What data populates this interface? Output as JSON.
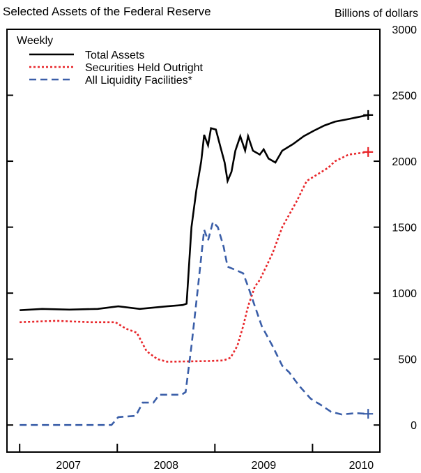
{
  "chart_data": {
    "type": "line",
    "title": "Selected Assets of the Federal Reserve",
    "y_axis_label": "Billions of dollars",
    "legend_title": "Weekly",
    "legend": "top-left",
    "xlim": [
      2006.87,
      2010.69
    ],
    "ylim": [
      -205,
      3000
    ],
    "yticks": [
      0,
      500,
      1000,
      1500,
      2000,
      2500,
      3000
    ],
    "x_boundaries": [
      2007,
      2008,
      2009,
      2010
    ],
    "xticks": [
      {
        "value": 2007.5,
        "label": "2007"
      },
      {
        "value": 2008.5,
        "label": "2008"
      },
      {
        "value": 2009.5,
        "label": "2009"
      },
      {
        "value": 2010.5,
        "label": "2010"
      }
    ],
    "series": [
      {
        "name": "Total Assets",
        "color": "#000000",
        "dash": "solid",
        "x": [
          2007.0,
          2007.23,
          2007.51,
          2007.8,
          2008.01,
          2008.23,
          2008.51,
          2008.67,
          2008.71,
          2008.76,
          2008.81,
          2008.86,
          2008.89,
          2008.93,
          2008.96,
          2009.01,
          2009.06,
          2009.1,
          2009.13,
          2009.17,
          2009.21,
          2009.26,
          2009.31,
          2009.34,
          2009.39,
          2009.46,
          2009.5,
          2009.55,
          2009.62,
          2009.69,
          2009.8,
          2009.91,
          2010.01,
          2010.12,
          2010.23,
          2010.37,
          2010.57
        ],
        "values": [
          870,
          880,
          875,
          880,
          900,
          880,
          900,
          910,
          920,
          1500,
          1780,
          2000,
          2200,
          2120,
          2250,
          2240,
          2100,
          1990,
          1850,
          1920,
          2080,
          2190,
          2080,
          2190,
          2080,
          2050,
          2090,
          2020,
          1990,
          2080,
          2130,
          2190,
          2230,
          2270,
          2300,
          2320,
          2350
        ]
      },
      {
        "name": "Securities Held Outright",
        "color": "#e8262a",
        "dash": "dotted",
        "x": [
          2007.0,
          2007.37,
          2007.73,
          2007.98,
          2008.09,
          2008.2,
          2008.3,
          2008.41,
          2008.51,
          2008.94,
          2009.09,
          2009.16,
          2009.23,
          2009.29,
          2009.34,
          2009.41,
          2009.46,
          2009.59,
          2009.69,
          2009.84,
          2009.94,
          2010.05,
          2010.16,
          2010.23,
          2010.37,
          2010.57
        ],
        "values": [
          780,
          790,
          780,
          780,
          730,
          700,
          560,
          500,
          480,
          485,
          490,
          510,
          600,
          750,
          900,
          1050,
          1100,
          1300,
          1500,
          1700,
          1850,
          1900,
          1950,
          2000,
          2050,
          2070
        ]
      },
      {
        "name": "All Liquidity Facilities*",
        "color": "#3a5ea8",
        "dash": "dashed",
        "x": [
          2007.0,
          2007.94,
          2008.01,
          2008.19,
          2008.26,
          2008.37,
          2008.43,
          2008.66,
          2008.7,
          2008.76,
          2008.82,
          2008.89,
          2008.93,
          2008.98,
          2009.03,
          2009.09,
          2009.13,
          2009.23,
          2009.29,
          2009.34,
          2009.41,
          2009.48,
          2009.59,
          2009.69,
          2009.76,
          2009.86,
          2009.98,
          2010.09,
          2010.19,
          2010.3,
          2010.44,
          2010.57
        ],
        "values": [
          0,
          0,
          60,
          70,
          170,
          170,
          230,
          230,
          250,
          600,
          1000,
          1480,
          1400,
          1540,
          1500,
          1350,
          1200,
          1170,
          1150,
          1050,
          900,
          750,
          600,
          450,
          400,
          300,
          200,
          150,
          100,
          80,
          90,
          85
        ]
      }
    ]
  }
}
